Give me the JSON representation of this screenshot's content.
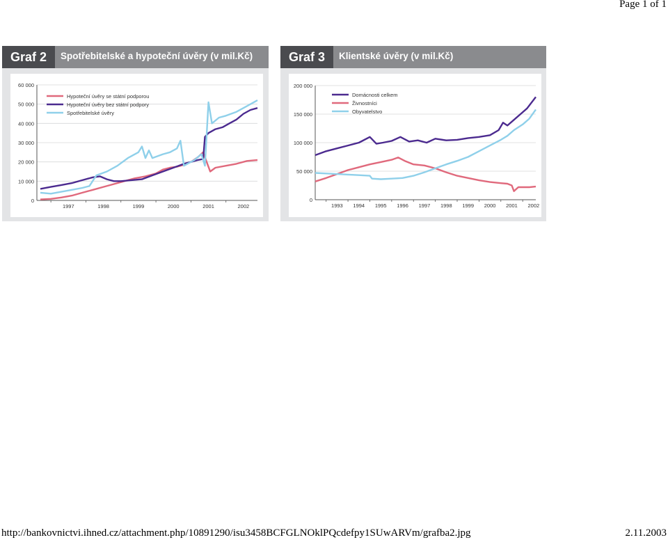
{
  "header": {
    "page_label": "Page 1 of 1"
  },
  "footer": {
    "url": "http://bankovnictvi.ihned.cz/attachment.php/10891290/isu3458BCFGLNOklPQcdefpy1SUwARVm/grafba2.jpg",
    "date": "2.11.2003"
  },
  "chart_data": [
    {
      "type": "line",
      "label": "Graf 2",
      "title": "Spotřebitelské a hypoteční úvěry (v mil.Kč)",
      "xlabel": "",
      "ylabel": "",
      "xlim": [
        1996.6,
        2002.9
      ],
      "ylim": [
        0,
        60000
      ],
      "x_ticks": [
        "1997",
        "1998",
        "1999",
        "2000",
        "2001",
        "2002"
      ],
      "y_ticks": [
        "0",
        "10 000",
        "20 000",
        "30 000",
        "40 000",
        "50 000",
        "60 000"
      ],
      "grid": "horizontal",
      "legend_position": "top-left",
      "series": [
        {
          "name": "Hypoteční úvěry se státní podporou",
          "color": "#e0697c",
          "x": [
            1996.7,
            1997.0,
            1997.3,
            1997.6,
            1997.9,
            1998.2,
            1998.5,
            1998.8,
            1999.1,
            1999.4,
            1999.7,
            2000.0,
            2000.2,
            2000.4,
            2000.6,
            2000.8,
            2001.0,
            2001.2,
            2001.35,
            2001.45,
            2001.55,
            2001.7,
            2002.0,
            2002.3,
            2002.6,
            2002.9
          ],
          "values": [
            500,
            800,
            1500,
            2500,
            4000,
            5500,
            7000,
            8500,
            10000,
            11500,
            12500,
            14000,
            16000,
            17000,
            17500,
            18500,
            20000,
            22500,
            25000,
            20000,
            15000,
            17000,
            18000,
            19000,
            20500,
            21000
          ]
        },
        {
          "name": "Hypoteční úvěry bez státní podpory",
          "color": "#4b2a8f",
          "x": [
            1996.7,
            1997.0,
            1997.3,
            1997.6,
            1997.9,
            1998.2,
            1998.4,
            1998.6,
            1998.8,
            1999.0,
            1999.3,
            1999.6,
            1999.9,
            2000.2,
            2000.5,
            2000.8,
            2001.0,
            2001.2,
            2001.35,
            2001.4,
            2001.5,
            2001.7,
            2001.9,
            2002.1,
            2002.3,
            2002.5,
            2002.7,
            2002.9
          ],
          "values": [
            6000,
            7000,
            8000,
            9000,
            10500,
            12000,
            12500,
            11000,
            10000,
            10000,
            10500,
            11000,
            13000,
            15000,
            17000,
            19000,
            20000,
            21000,
            21500,
            33000,
            35000,
            37000,
            38000,
            40000,
            42000,
            45000,
            47000,
            48000
          ]
        },
        {
          "name": "Spotřebitelské úvěry",
          "color": "#8fd0ea",
          "x": [
            1996.7,
            1997.0,
            1997.3,
            1997.6,
            1997.9,
            1998.1,
            1998.3,
            1998.6,
            1998.9,
            1999.2,
            1999.5,
            1999.6,
            1999.7,
            1999.8,
            1999.9,
            2000.2,
            2000.4,
            2000.6,
            2000.7,
            2000.8,
            2000.9,
            2001.1,
            2001.3,
            2001.4,
            2001.5,
            2001.6,
            2001.8,
            2002.0,
            2002.3,
            2002.6,
            2002.9
          ],
          "values": [
            4000,
            3500,
            4500,
            5500,
            6500,
            7500,
            13000,
            15000,
            18000,
            22000,
            25000,
            28000,
            22000,
            26000,
            22000,
            24000,
            25000,
            27000,
            31000,
            18000,
            19000,
            21000,
            24000,
            18000,
            51000,
            40000,
            43000,
            44000,
            46000,
            49000,
            52000
          ]
        }
      ]
    },
    {
      "type": "line",
      "label": "Graf 3",
      "title": "Klientské úvěry (v mil.Kč)",
      "xlabel": "",
      "ylabel": "",
      "xlim": [
        1992.5,
        2002.6
      ],
      "ylim": [
        0,
        200000
      ],
      "x_ticks": [
        "1993",
        "1994",
        "1995",
        "1996",
        "1997",
        "1998",
        "1999",
        "2000",
        "2001",
        "2002"
      ],
      "y_ticks": [
        "0",
        "50 000",
        "100 000",
        "150 000",
        "200 000"
      ],
      "grid": "horizontal",
      "legend_position": "top-left",
      "series": [
        {
          "name": "Domácnosti celkem",
          "color": "#4b2a8f",
          "x": [
            1992.5,
            1993.0,
            1993.5,
            1994.0,
            1994.5,
            1995.0,
            1995.3,
            1995.6,
            1996.0,
            1996.4,
            1996.8,
            1997.2,
            1997.6,
            1998.0,
            1998.5,
            1999.0,
            1999.5,
            2000.0,
            2000.5,
            2000.9,
            2001.1,
            2001.3,
            2001.6,
            2001.9,
            2002.2,
            2002.6
          ],
          "values": [
            78000,
            85000,
            90000,
            95000,
            100000,
            110000,
            98000,
            100000,
            103000,
            110000,
            102000,
            104000,
            100000,
            107000,
            104000,
            105000,
            108000,
            110000,
            113000,
            122000,
            135000,
            130000,
            140000,
            150000,
            160000,
            180000
          ]
        },
        {
          "name": "Živnostníci",
          "color": "#e0697c",
          "x": [
            1992.5,
            1993.0,
            1993.5,
            1994.0,
            1994.5,
            1995.0,
            1995.5,
            1996.0,
            1996.3,
            1996.6,
            1997.0,
            1997.5,
            1998.0,
            1998.5,
            1999.0,
            1999.5,
            2000.0,
            2000.5,
            2001.0,
            2001.3,
            2001.5,
            2001.6,
            2001.8,
            2002.0,
            2002.3,
            2002.6
          ],
          "values": [
            32000,
            38000,
            45000,
            52000,
            57000,
            62000,
            66000,
            70000,
            74000,
            68000,
            62000,
            60000,
            55000,
            48000,
            42000,
            38000,
            34000,
            31000,
            29000,
            28000,
            25000,
            15000,
            22000,
            22000,
            22000,
            23000
          ]
        },
        {
          "name": "Obyvatelstvo",
          "color": "#8fd0ea",
          "x": [
            1992.5,
            1993.0,
            1993.5,
            1994.0,
            1994.5,
            1995.0,
            1995.1,
            1995.5,
            1996.0,
            1996.5,
            1997.0,
            1997.5,
            1998.0,
            1998.5,
            1999.0,
            1999.5,
            2000.0,
            2000.5,
            2001.0,
            2001.3,
            2001.6,
            2002.0,
            2002.3,
            2002.6
          ],
          "values": [
            47000,
            46000,
            45000,
            44000,
            43000,
            42000,
            37000,
            36000,
            37000,
            38000,
            42000,
            48000,
            55000,
            62000,
            68000,
            75000,
            85000,
            95000,
            105000,
            112000,
            122000,
            132000,
            142000,
            158000
          ]
        }
      ]
    }
  ]
}
